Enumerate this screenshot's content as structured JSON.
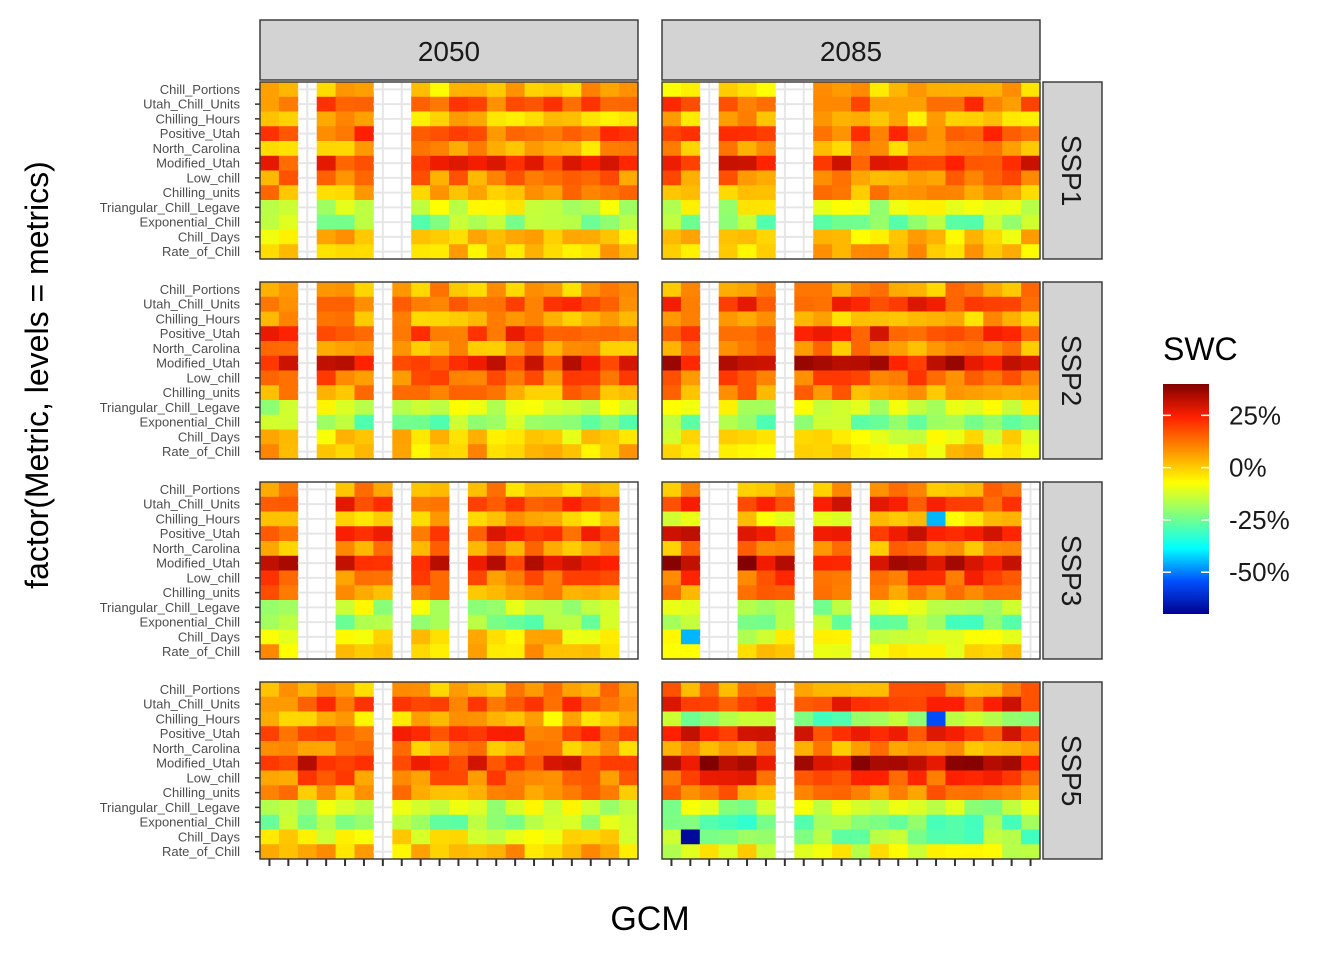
{
  "chart_data": {
    "type": "heatmap",
    "title": "",
    "xlabel": "GCM",
    "ylabel": "factor(Metric, levels = metrics)",
    "column_facets": [
      "2050",
      "2085"
    ],
    "row_facets": [
      "SSP1",
      "SSP2",
      "SSP3",
      "SSP5"
    ],
    "metrics": [
      "Chill_Portions",
      "Utah_Chill_Units",
      "Chilling_Hours",
      "Positive_Utah",
      "North_Carolina",
      "Modified_Utah",
      "Low_chill",
      "Chilling_units",
      "Triangular_Chill_Legave",
      "Exponential_Chill",
      "Chill_Days",
      "Rate_of_Chill"
    ],
    "n_gcm_columns": 20,
    "gcm_axis_note": "tick labels overlapping and illegible in source",
    "legend": {
      "title": "SWC",
      "labels": [
        "25%",
        "0%",
        "-25%",
        "-50%"
      ],
      "ticks": [
        25,
        0,
        -25,
        -50
      ],
      "range": [
        -70,
        40
      ],
      "colors": [
        "#00008F",
        "#0050FF",
        "#00FFFF",
        "#80FF80",
        "#FFFF00",
        "#FF9000",
        "#FF2000",
        "#800000"
      ],
      "placement": "right"
    },
    "missing_color": "#FFFFFF",
    "grid": true,
    "panels": {
      "2050_SSP1": {
        "missing": [
          2,
          6,
          7
        ]
      },
      "2050_SSP2": {
        "missing": [
          2,
          6
        ]
      },
      "2050_SSP3": {
        "missing": [
          2,
          3,
          7,
          10,
          19
        ]
      },
      "2050_SSP5": {
        "missing": [
          6
        ]
      },
      "2085_SSP1": {
        "missing": [
          2,
          6,
          7
        ]
      },
      "2085_SSP2": {
        "missing": [
          2,
          6
        ]
      },
      "2085_SSP3": {
        "missing": [
          2,
          3,
          7,
          10,
          19
        ]
      },
      "2085_SSP5": {
        "missing": [
          6
        ]
      }
    },
    "base_values": {
      "2050": {
        "SSP1": [
          2,
          14,
          3,
          16,
          4,
          22,
          10,
          6,
          -12,
          -20,
          0,
          2
        ],
        "SSP2": [
          5,
          17,
          5,
          19,
          6,
          25,
          13,
          8,
          -13,
          -20,
          -2,
          2
        ],
        "SSP3": [
          5,
          19,
          4,
          20,
          7,
          27,
          14,
          9,
          -13,
          -20,
          -3,
          1
        ],
        "SSP5": [
          6,
          16,
          1,
          18,
          6,
          25,
          13,
          8,
          -12,
          -19,
          -6,
          2
        ]
      },
      "2085": {
        "SSP1": [
          1,
          15,
          3,
          17,
          4,
          23,
          10,
          6,
          -12,
          -20,
          -1,
          2
        ],
        "SSP2": [
          6,
          20,
          3,
          22,
          7,
          29,
          15,
          9,
          -13,
          -22,
          -7,
          0
        ],
        "SSP3": [
          8,
          22,
          -5,
          24,
          8,
          31,
          18,
          10,
          -16,
          -22,
          -10,
          -2
        ],
        "SSP5": [
          9,
          22,
          -22,
          24,
          8,
          32,
          19,
          10,
          -16,
          -24,
          -22,
          -8
        ]
      }
    },
    "notable_cells": [
      {
        "panel": "2085_SSP5",
        "metric": "Chill_Days",
        "col": 1,
        "value": -68
      },
      {
        "panel": "2085_SSP5",
        "metric": "Chilling_Hours",
        "col": 14,
        "value": -55
      },
      {
        "panel": "2085_SSP3",
        "metric": "Chilling_Hours",
        "col": 14,
        "value": -45
      },
      {
        "panel": "2085_SSP3",
        "metric": "Chill_Days",
        "col": 1,
        "value": -45
      }
    ]
  }
}
